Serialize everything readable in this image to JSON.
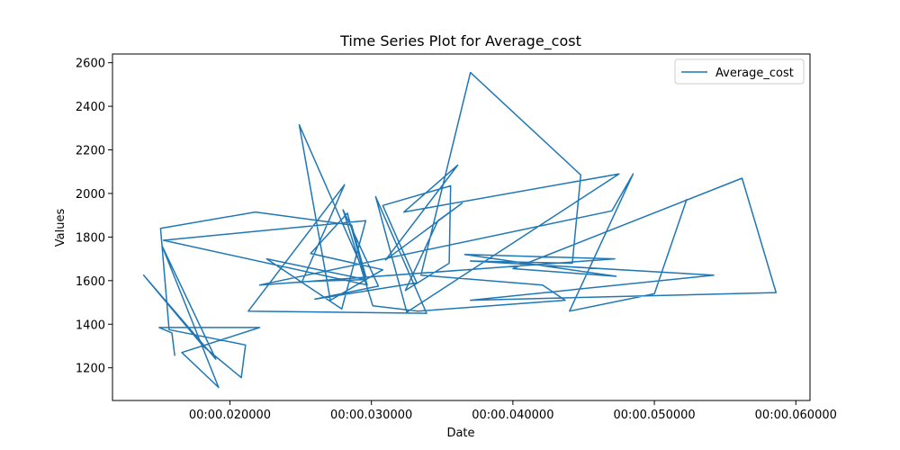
{
  "chart_data": {
    "type": "line",
    "title": "Time Series Plot for Average_cost",
    "xlabel": "Date",
    "ylabel": "Values",
    "x_unit": "seconds",
    "xlim": [
      0.0117,
      0.061
    ],
    "ylim": [
      1050,
      2640
    ],
    "x_ticks": [
      0.02,
      0.03,
      0.04,
      0.05,
      0.06
    ],
    "x_tick_labels": [
      "00:00.020000",
      "00:00.030000",
      "00:00.040000",
      "00:00.050000",
      "00:00.060000"
    ],
    "y_ticks": [
      1200,
      1400,
      1600,
      1800,
      2000,
      2200,
      2400,
      2600
    ],
    "y_tick_labels": [
      "1200",
      "1400",
      "1600",
      "1800",
      "2000",
      "2200",
      "2400",
      "2600"
    ],
    "grid": false,
    "legend_position": "top-right",
    "series": [
      {
        "name": "Average_cost",
        "color": "#1f77b4",
        "x": [
          0.0161,
          0.0159,
          0.015,
          0.0221,
          0.0166,
          0.0192,
          0.0152,
          0.019,
          0.0139,
          0.0181,
          0.0208,
          0.0211,
          0.0157,
          0.0151,
          0.0218,
          0.0286,
          0.0296,
          0.0249,
          0.0271,
          0.0308,
          0.0257,
          0.0283,
          0.0297,
          0.0153,
          0.0296,
          0.0279,
          0.0226,
          0.0296,
          0.0251,
          0.0281,
          0.0213,
          0.0339,
          0.0303,
          0.0325,
          0.0475,
          0.0323,
          0.0361,
          0.031,
          0.0364,
          0.0347,
          0.0324,
          0.0355,
          0.0356,
          0.0308,
          0.0332,
          0.026,
          0.0305,
          0.028,
          0.0301,
          0.0333,
          0.0437,
          0.0421,
          0.0335,
          0.037,
          0.0448,
          0.0442,
          0.037,
          0.0542,
          0.037,
          0.0586,
          0.0562,
          0.04,
          0.0473,
          0.0366,
          0.0472,
          0.0221,
          0.047,
          0.0485,
          0.044,
          0.05,
          0.0523
        ],
        "y": [
          1255,
          1360,
          1385,
          1385,
          1270,
          1110,
          1760,
          1240,
          1625,
          1300,
          1155,
          1305,
          1375,
          1840,
          1915,
          1855,
          1620,
          2315,
          1510,
          1650,
          1725,
          1910,
          1580,
          1785,
          1875,
          1470,
          1700,
          1605,
          1595,
          2040,
          1460,
          1450,
          1985,
          1455,
          2090,
          1915,
          2130,
          1695,
          1955,
          1875,
          1555,
          1680,
          2035,
          1945,
          1590,
          1515,
          1575,
          1925,
          1485,
          1460,
          1510,
          1580,
          1625,
          2555,
          2085,
          1680,
          1690,
          1625,
          1510,
          1545,
          2070,
          1655,
          1620,
          1720,
          1700,
          1580,
          1920,
          2090,
          1460,
          1540,
          1975
        ]
      }
    ]
  }
}
